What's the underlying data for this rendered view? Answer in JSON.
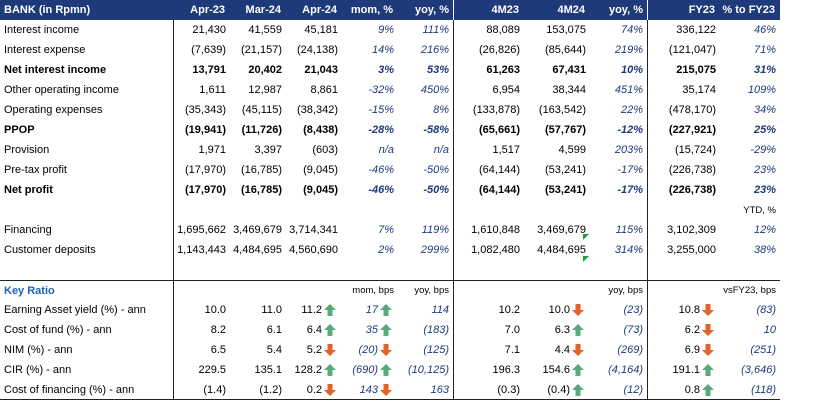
{
  "header": {
    "title": "BANK (in Rpmn)",
    "cols": [
      "Apr-23",
      "Mar-24",
      "Apr-24",
      "mom, %",
      "yoy, %",
      "4M23",
      "4M24",
      "yoy, %",
      "FY23",
      "% to FY23"
    ]
  },
  "rows": [
    {
      "label": "Interest income",
      "bold": false,
      "v": [
        "21,430",
        "41,559",
        "45,181",
        "9%",
        "111%",
        "88,089",
        "153,075",
        "74%",
        "336,122",
        "46%"
      ]
    },
    {
      "label": "Interest expense",
      "bold": false,
      "v": [
        "(7,639)",
        "(21,157)",
        "(24,138)",
        "14%",
        "216%",
        "(26,826)",
        "(85,644)",
        "219%",
        "(121,047)",
        "71%"
      ]
    },
    {
      "label": "Net interest income",
      "bold": true,
      "v": [
        "13,791",
        "20,402",
        "21,043",
        "3%",
        "53%",
        "61,263",
        "67,431",
        "10%",
        "215,075",
        "31%"
      ]
    },
    {
      "label": "Other operating income",
      "bold": false,
      "v": [
        "1,611",
        "12,987",
        "8,861",
        "-32%",
        "450%",
        "6,954",
        "38,344",
        "451%",
        "35,174",
        "109%"
      ]
    },
    {
      "label": "Operating expenses",
      "bold": false,
      "v": [
        "(35,343)",
        "(45,115)",
        "(38,342)",
        "-15%",
        "8%",
        "(133,878)",
        "(163,542)",
        "22%",
        "(478,170)",
        "34%"
      ]
    },
    {
      "label": "PPOP",
      "bold": true,
      "v": [
        "(19,941)",
        "(11,726)",
        "(8,438)",
        "-28%",
        "-58%",
        "(65,661)",
        "(57,767)",
        "-12%",
        "(227,921)",
        "25%"
      ]
    },
    {
      "label": "Provision",
      "bold": false,
      "v": [
        "1,971",
        "3,397",
        "(603)",
        "n/a",
        "n/a",
        "1,517",
        "4,599",
        "203%",
        "(15,724)",
        "-29%"
      ]
    },
    {
      "label": "Pre-tax profit",
      "bold": false,
      "v": [
        "(17,970)",
        "(16,785)",
        "(9,045)",
        "-46%",
        "-50%",
        "(64,144)",
        "(53,241)",
        "-17%",
        "(226,738)",
        "23%"
      ]
    },
    {
      "label": "Net profit",
      "bold": true,
      "v": [
        "(17,970)",
        "(16,785)",
        "(9,045)",
        "-46%",
        "-50%",
        "(64,144)",
        "(53,241)",
        "-17%",
        "(226,738)",
        "23%"
      ]
    }
  ],
  "ytd_label": "YTD, %",
  "balance": [
    {
      "label": "Financing",
      "v": [
        "1,695,662",
        "3,469,679",
        "3,714,341",
        "7%",
        "119%",
        "1,610,848",
        "3,469,679",
        "115%",
        "3,102,309",
        "12%"
      ]
    },
    {
      "label": "Customer deposits",
      "v": [
        "1,143,443",
        "4,484,695",
        "4,560,690",
        "2%",
        "299%",
        "1,082,480",
        "4,484,695",
        "314%",
        "3,255,000",
        "38%"
      ]
    }
  ],
  "key_ratio": {
    "title": "Key Ratio",
    "mom_hdr": "mom, bps",
    "yoy_hdr": "yoy, bps",
    "yoy2_hdr": "yoy, bps",
    "vsfy_hdr": "vsFY23, bps",
    "rows": [
      {
        "label": "Earning Asset yield (%) - ann",
        "apr23": "10.0",
        "mar24": "11.0",
        "apr24": "11.2",
        "mom_dir": "up",
        "mom": "17",
        "yoy_dir": "up",
        "yoy": "114",
        "m23": "10.2",
        "m24": "10.0",
        "yoy2_dir": "down",
        "yoy2": "(23)",
        "fy23": "10.8",
        "vs_dir": "down",
        "vs": "(83)"
      },
      {
        "label": "Cost of fund (%) - ann",
        "apr23": "8.2",
        "mar24": "6.1",
        "apr24": "6.4",
        "mom_dir": "up",
        "mom": "35",
        "yoy_dir": "up",
        "yoy": "(183)",
        "m23": "7.0",
        "m24": "6.3",
        "yoy2_dir": "up",
        "yoy2": "(73)",
        "fy23": "6.2",
        "vs_dir": "down",
        "vs": "10"
      },
      {
        "label": "NIM (%) - ann",
        "apr23": "6.5",
        "mar24": "5.4",
        "apr24": "5.2",
        "mom_dir": "down",
        "mom": "(20)",
        "yoy_dir": "down",
        "yoy": "(125)",
        "m23": "7.1",
        "m24": "4.4",
        "yoy2_dir": "down",
        "yoy2": "(269)",
        "fy23": "6.9",
        "vs_dir": "down",
        "vs": "(251)"
      },
      {
        "label": "CIR (%) - ann",
        "apr23": "229.5",
        "mar24": "135.1",
        "apr24": "128.2",
        "mom_dir": "up",
        "mom": "(690)",
        "yoy_dir": "up",
        "yoy": "(10,125)",
        "m23": "196.3",
        "m24": "154.6",
        "yoy2_dir": "up",
        "yoy2": "(4,164)",
        "fy23": "191.1",
        "vs_dir": "up",
        "vs": "(3,646)"
      },
      {
        "label": "Cost of financing (%) - ann",
        "apr23": "(1.4)",
        "mar24": "(1.2)",
        "apr24": "0.2",
        "mom_dir": "down",
        "mom": "143",
        "yoy_dir": "down",
        "yoy": "163",
        "m23": "(0.3)",
        "m24": "(0.4)",
        "yoy2_dir": "up",
        "yoy2": "(12)",
        "fy23": "0.8",
        "vs_dir": "up",
        "vs": "(118)"
      }
    ]
  },
  "colors": {
    "header_bg": "#1f3a7a",
    "up_arrow": "#5aa97c",
    "down_arrow": "#e0632a",
    "flag": "#1b9e3a"
  }
}
